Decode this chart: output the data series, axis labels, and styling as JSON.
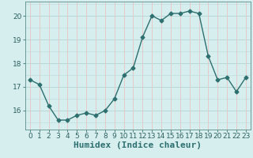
{
  "x": [
    0,
    1,
    2,
    3,
    4,
    5,
    6,
    7,
    8,
    9,
    10,
    11,
    12,
    13,
    14,
    15,
    16,
    17,
    18,
    19,
    20,
    21,
    22,
    23
  ],
  "y": [
    17.3,
    17.1,
    16.2,
    15.6,
    15.6,
    15.8,
    15.9,
    15.8,
    16.0,
    16.5,
    17.5,
    17.8,
    19.1,
    20.0,
    19.8,
    20.1,
    20.1,
    20.2,
    20.1,
    18.3,
    17.3,
    17.4,
    16.8,
    17.4
  ],
  "line_color": "#2e6f6f",
  "marker": "D",
  "marker_size": 2.5,
  "bg_color": "#d6eeee",
  "hgrid_color": "#b8d8d8",
  "vgrid_color": "#e8c8c8",
  "xlabel": "Humidex (Indice chaleur)",
  "xlabel_fontsize": 8,
  "yticks": [
    16,
    17,
    18,
    19,
    20
  ],
  "xtick_labels": [
    "0",
    "1",
    "2",
    "3",
    "4",
    "5",
    "6",
    "7",
    "8",
    "9",
    "10",
    "11",
    "12",
    "13",
    "14",
    "15",
    "16",
    "17",
    "18",
    "19",
    "20",
    "21",
    "22",
    "23"
  ],
  "ylim": [
    15.2,
    20.6
  ],
  "xlim": [
    -0.5,
    23.5
  ],
  "tick_fontsize": 6.5,
  "line_width": 1.0
}
